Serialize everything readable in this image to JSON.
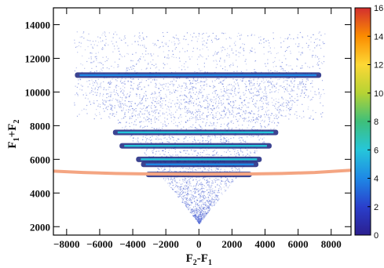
{
  "chart_data": {
    "type": "heatmap",
    "title": "",
    "xlabel": {
      "main1": "F",
      "sub1": "2",
      "op": "-",
      "main2": "F",
      "sub2": "1"
    },
    "ylabel": {
      "main1": "F",
      "sub1": "1",
      "op": "+",
      "main2": "F",
      "sub2": "2"
    },
    "xlim": [
      -8800,
      9200
    ],
    "ylim": [
      1500,
      15000
    ],
    "x_ticks": [
      -8000,
      -6000,
      -4000,
      -2000,
      0,
      2000,
      4000,
      6000,
      8000
    ],
    "x_tick_labels": [
      "−8000",
      "−6000",
      "−4000",
      "−2000",
      "0",
      "2000",
      "4000",
      "6000",
      "8000"
    ],
    "y_ticks": [
      2000,
      4000,
      6000,
      8000,
      10000,
      12000,
      14000
    ],
    "y_tick_labels": [
      "2000",
      "4000",
      "6000",
      "8000",
      "10000",
      "12000",
      "14000"
    ],
    "colorbar": {
      "range": [
        0,
        16
      ],
      "ticks": [
        0,
        2,
        4,
        6,
        8,
        10,
        12,
        14,
        16
      ],
      "tick_labels": [
        "0",
        "2",
        "4",
        "6",
        "8",
        "10",
        "12",
        "14",
        "16"
      ]
    },
    "bands": [
      {
        "y": 11000,
        "x_min": -7500,
        "x_max": 7400,
        "intensity": 3
      },
      {
        "y": 7600,
        "x_min": -5200,
        "x_max": 4800,
        "intensity": 5
      },
      {
        "y": 6800,
        "x_min": -4800,
        "x_max": 4400,
        "intensity": 6
      },
      {
        "y": 6000,
        "x_min": -3800,
        "x_max": 3800,
        "intensity": 5
      },
      {
        "y": 5700,
        "x_min": -3500,
        "x_max": 3600,
        "intensity": 4
      },
      {
        "y": 5100,
        "x_min": -3200,
        "x_max": 3200,
        "intensity": 7
      }
    ],
    "threshold_curve": {
      "x": [
        -8800,
        -7000,
        -5000,
        -3000,
        0,
        3000,
        5000,
        7000,
        9200
      ],
      "y": [
        5300,
        5220,
        5160,
        5130,
        5120,
        5130,
        5160,
        5220,
        5350
      ]
    },
    "colors": {
      "colorbar_stops": [
        "#2b1f8f",
        "#2a3fcc",
        "#1e88e5",
        "#26c6da",
        "#3ebf7a",
        "#b5d334",
        "#fdd835",
        "#fb8c00",
        "#d32f2f"
      ],
      "threshold": "#f4a582",
      "scatter": "#5a6fd6",
      "band_core": "#1a237e"
    }
  }
}
